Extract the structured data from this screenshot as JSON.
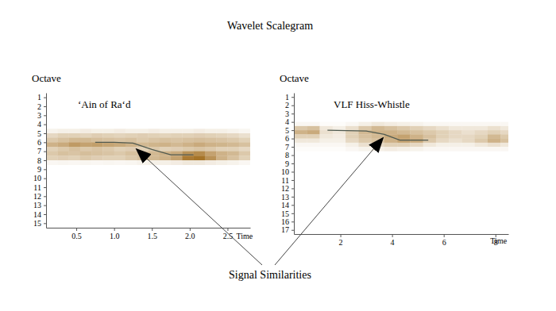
{
  "title": "Wavelet Scalegram",
  "annotation": "Signal Similarities",
  "chart_data": [
    {
      "type": "heatmap",
      "title": "‘Ain of Ra‘d",
      "x_label": "Time",
      "y_label": "Octave",
      "xlim": [
        0.1,
        2.8
      ],
      "xticks": [
        0.5,
        {
          "value": 1,
          "label": "1.0"
        },
        1.5,
        {
          "value": 2,
          "label": "2.0"
        },
        2.5
      ],
      "ylim": [
        15.5,
        0.5
      ],
      "yticks": [
        1,
        2,
        3,
        4,
        5,
        6,
        7,
        8,
        9,
        10,
        11,
        12,
        13,
        14,
        15
      ],
      "grid": false,
      "color": "#9c6410",
      "zlim": [
        0,
        1
      ],
      "cells": {
        "x_bins": [
          0.1,
          0.25,
          0.4,
          0.55,
          0.7,
          0.85,
          1.0,
          1.15,
          1.3,
          1.45,
          1.6,
          1.75,
          1.9,
          2.05,
          2.2,
          2.35,
          2.5,
          2.65,
          2.8
        ],
        "y_bins": [
          4.5,
          5,
          5.5,
          6,
          6.5,
          7,
          7.5,
          8,
          8.5
        ],
        "values": [
          [
            0.08,
            0.1,
            0.1,
            0.12,
            0.1,
            0.1,
            0.12,
            0.1,
            0.1,
            0.12,
            0.1,
            0.1,
            0.1,
            0.12,
            0.1,
            0.1,
            0.08,
            0.06
          ],
          [
            0.25,
            0.3,
            0.3,
            0.28,
            0.32,
            0.3,
            0.28,
            0.3,
            0.32,
            0.3,
            0.28,
            0.3,
            0.3,
            0.32,
            0.3,
            0.28,
            0.25,
            0.2
          ],
          [
            0.35,
            0.4,
            0.45,
            0.45,
            0.42,
            0.4,
            0.38,
            0.4,
            0.35,
            0.38,
            0.4,
            0.38,
            0.4,
            0.42,
            0.4,
            0.38,
            0.35,
            0.3
          ],
          [
            0.5,
            0.55,
            0.65,
            0.6,
            0.62,
            0.58,
            0.55,
            0.5,
            0.45,
            0.48,
            0.5,
            0.45,
            0.5,
            0.55,
            0.5,
            0.48,
            0.45,
            0.4
          ],
          [
            0.3,
            0.35,
            0.4,
            0.35,
            0.38,
            0.35,
            0.3,
            0.32,
            0.3,
            0.35,
            0.3,
            0.32,
            0.35,
            0.38,
            0.35,
            0.3,
            0.3,
            0.25
          ],
          [
            0.35,
            0.4,
            0.38,
            0.42,
            0.4,
            0.38,
            0.35,
            0.4,
            0.42,
            0.45,
            0.5,
            0.55,
            0.7,
            0.75,
            0.6,
            0.5,
            0.45,
            0.35
          ],
          [
            0.3,
            0.32,
            0.3,
            0.35,
            0.32,
            0.3,
            0.3,
            0.35,
            0.4,
            0.45,
            0.5,
            0.6,
            0.85,
            0.9,
            0.7,
            0.5,
            0.4,
            0.3
          ],
          [
            0.05,
            0.06,
            0.05,
            0.06,
            0.05,
            0.06,
            0.05,
            0.06,
            0.08,
            0.1,
            0.1,
            0.12,
            0.15,
            0.15,
            0.12,
            0.1,
            0.08,
            0.05
          ]
        ]
      },
      "series": [
        {
          "type": "line",
          "color": "#505a50",
          "x": [
            0.75,
            1.0,
            1.25,
            1.5,
            1.75,
            2.05
          ],
          "values": [
            6.0,
            6.0,
            6.1,
            6.8,
            7.4,
            7.4
          ]
        }
      ]
    },
    {
      "type": "heatmap",
      "title": "VLF Hiss-Whistle",
      "x_label": "Time",
      "y_label": "Octave",
      "xlim": [
        0.2,
        8.5
      ],
      "xticks": [
        2,
        4,
        6,
        8
      ],
      "ylim": [
        17.5,
        0.5
      ],
      "yticks": [
        1,
        2,
        3,
        4,
        5,
        6,
        7,
        8,
        9,
        10,
        11,
        12,
        13,
        14,
        15,
        16,
        17
      ],
      "grid": false,
      "color": "#9c6410",
      "zlim": [
        0,
        1
      ],
      "cells": {
        "x_bins": [
          0.2,
          0.7,
          1.2,
          1.7,
          2.2,
          2.7,
          3.2,
          3.7,
          4.2,
          4.7,
          5.2,
          5.7,
          6.2,
          6.7,
          7.2,
          7.7,
          8.2,
          8.5
        ],
        "y_bins": [
          4,
          4.5,
          5,
          5.5,
          6,
          6.5,
          7,
          7.5
        ],
        "values": [
          [
            0.05,
            0.05,
            0.02,
            0.02,
            0.05,
            0.1,
            0.15,
            0.12,
            0.1,
            0.08,
            0.05,
            0.05,
            0.05,
            0.05,
            0.05,
            0.05,
            0.05
          ],
          [
            0.35,
            0.4,
            0.15,
            0.1,
            0.2,
            0.35,
            0.45,
            0.4,
            0.35,
            0.3,
            0.25,
            0.2,
            0.15,
            0.15,
            0.15,
            0.2,
            0.15
          ],
          [
            0.5,
            0.55,
            0.2,
            0.15,
            0.3,
            0.45,
            0.5,
            0.5,
            0.45,
            0.4,
            0.35,
            0.3,
            0.25,
            0.2,
            0.25,
            0.3,
            0.25
          ],
          [
            0.3,
            0.3,
            0.15,
            0.12,
            0.3,
            0.4,
            0.45,
            0.55,
            0.6,
            0.5,
            0.4,
            0.3,
            0.25,
            0.25,
            0.3,
            0.45,
            0.35
          ],
          [
            0.15,
            0.15,
            0.1,
            0.1,
            0.25,
            0.35,
            0.4,
            0.5,
            0.6,
            0.55,
            0.35,
            0.25,
            0.2,
            0.25,
            0.35,
            0.5,
            0.4
          ],
          [
            0.05,
            0.05,
            0.05,
            0.05,
            0.1,
            0.2,
            0.25,
            0.3,
            0.3,
            0.25,
            0.15,
            0.1,
            0.1,
            0.1,
            0.15,
            0.2,
            0.15
          ],
          [
            0.02,
            0.02,
            0.02,
            0.02,
            0.05,
            0.08,
            0.1,
            0.12,
            0.1,
            0.08,
            0.05,
            0.05,
            0.05,
            0.05,
            0.05,
            0.05,
            0.05
          ]
        ]
      },
      "series": [
        {
          "type": "line",
          "color": "#505a50",
          "x": [
            1.5,
            3.0,
            3.7,
            4.3,
            5.4
          ],
          "values": [
            5.0,
            5.1,
            5.5,
            6.2,
            6.2
          ]
        }
      ]
    }
  ]
}
